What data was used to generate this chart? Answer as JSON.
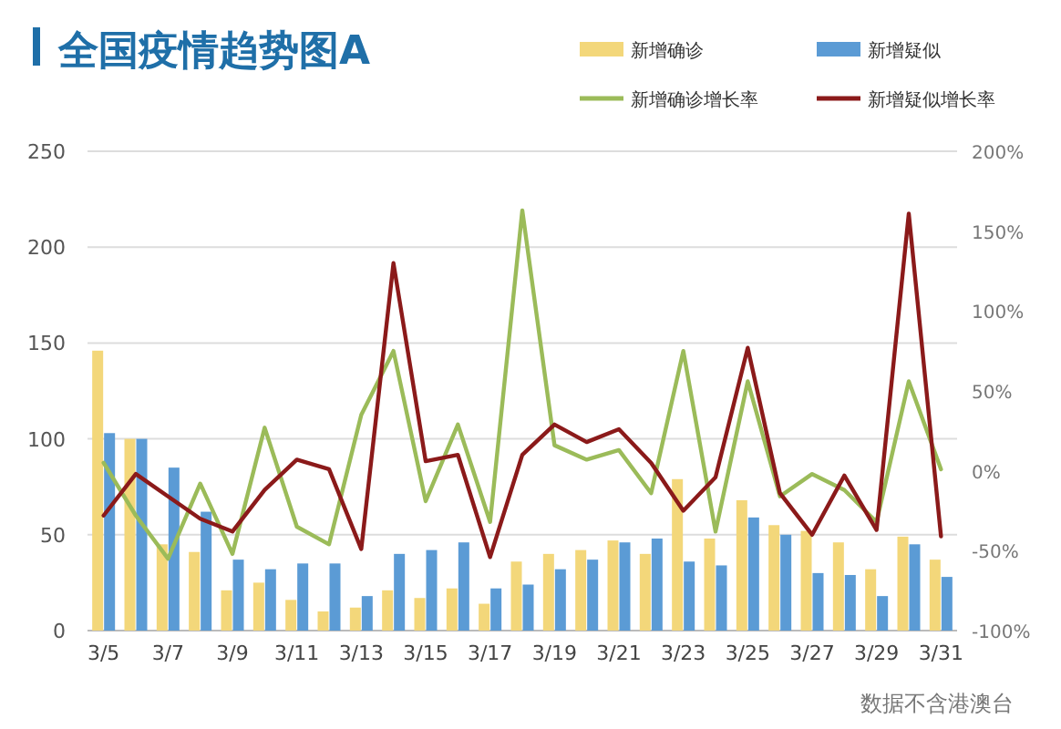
{
  "chart_data": {
    "type": "bar",
    "title": "全国疫情趋势图A",
    "annotations": [
      "数据不含港澳台"
    ],
    "categories": [
      "3/5",
      null,
      "3/7",
      null,
      "3/9",
      null,
      "3/11",
      null,
      "3/13",
      null,
      "3/15",
      null,
      "3/17",
      null,
      "3/19",
      null,
      "3/21",
      null,
      "3/23",
      null,
      "3/25",
      null,
      "3/27",
      null,
      "3/29",
      null,
      "3/31"
    ],
    "series": [
      {
        "name": "新增确诊",
        "color": "#f3d77a",
        "values": [
          146,
          100,
          45,
          41,
          21,
          25,
          16,
          10,
          12,
          21,
          17,
          22,
          14,
          36,
          40,
          42,
          47,
          40,
          79,
          48,
          68,
          55,
          52,
          46,
          32,
          49,
          37
        ]
      },
      {
        "name": "新增疑似",
        "color": "#5b9bd5",
        "values": [
          103,
          100,
          85,
          62,
          37,
          32,
          35,
          35,
          18,
          40,
          42,
          46,
          22,
          24,
          32,
          37,
          46,
          48,
          36,
          34,
          59,
          50,
          30,
          29,
          18,
          45,
          28
        ]
      },
      {
        "name": "新增确诊增长率",
        "type": "line",
        "axis": "y2",
        "color": "#9bbb59",
        "values": [
          5,
          -28,
          -55,
          -8,
          -52,
          27,
          -35,
          -46,
          35,
          75,
          -19,
          29,
          -32,
          163,
          16,
          7,
          13,
          -14,
          75,
          -38,
          56,
          -16,
          -2,
          -12,
          -32,
          56,
          1
        ]
      },
      {
        "name": "新增疑似增长率",
        "type": "line",
        "axis": "y2",
        "color": "#8b1a1a",
        "values": [
          -28,
          -2,
          -16,
          -30,
          -38,
          -12,
          7,
          1,
          -49,
          130,
          6,
          10,
          -54,
          10,
          29,
          18,
          26,
          5,
          -25,
          -4,
          77,
          -14,
          -40,
          -3,
          -37,
          161,
          -41
        ]
      }
    ],
    "ylim": [
      0,
      250
    ],
    "yticks": [
      0,
      50,
      100,
      150,
      200,
      250
    ],
    "y2lim": [
      -100,
      200
    ],
    "y2ticks": [
      {
        "value": -100,
        "label": "-100%"
      },
      {
        "value": -50,
        "label": "-50%"
      },
      {
        "value": 0,
        "label": "0%"
      },
      {
        "value": 50,
        "label": "50%"
      },
      {
        "value": 100,
        "label": "100%"
      },
      {
        "value": 150,
        "label": "150%"
      },
      {
        "value": 200,
        "label": "200%"
      }
    ],
    "grid": "y",
    "legend": "top right"
  }
}
